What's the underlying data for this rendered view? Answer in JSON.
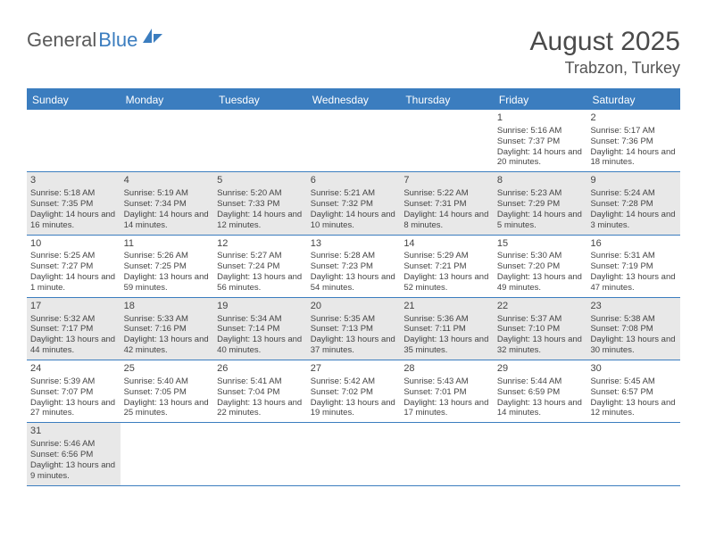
{
  "logo": {
    "text1": "General",
    "text2": "Blue"
  },
  "title": "August 2025",
  "location": "Trabzon, Turkey",
  "colors": {
    "header_bg": "#3b7dbf",
    "border": "#3b7dbf",
    "shaded_bg": "#e8e8e8",
    "page_bg": "#ffffff",
    "text": "#333333"
  },
  "days_of_week": [
    "Sunday",
    "Monday",
    "Tuesday",
    "Wednesday",
    "Thursday",
    "Friday",
    "Saturday"
  ],
  "weeks": [
    [
      {
        "empty": true
      },
      {
        "empty": true
      },
      {
        "empty": true
      },
      {
        "empty": true
      },
      {
        "empty": true
      },
      {
        "num": "1",
        "sunrise": "5:16 AM",
        "sunset": "7:37 PM",
        "daylight": "14 hours and 20 minutes."
      },
      {
        "num": "2",
        "sunrise": "5:17 AM",
        "sunset": "7:36 PM",
        "daylight": "14 hours and 18 minutes."
      }
    ],
    [
      {
        "num": "3",
        "sunrise": "5:18 AM",
        "sunset": "7:35 PM",
        "daylight": "14 hours and 16 minutes.",
        "shaded": true
      },
      {
        "num": "4",
        "sunrise": "5:19 AM",
        "sunset": "7:34 PM",
        "daylight": "14 hours and 14 minutes.",
        "shaded": true
      },
      {
        "num": "5",
        "sunrise": "5:20 AM",
        "sunset": "7:33 PM",
        "daylight": "14 hours and 12 minutes.",
        "shaded": true
      },
      {
        "num": "6",
        "sunrise": "5:21 AM",
        "sunset": "7:32 PM",
        "daylight": "14 hours and 10 minutes.",
        "shaded": true
      },
      {
        "num": "7",
        "sunrise": "5:22 AM",
        "sunset": "7:31 PM",
        "daylight": "14 hours and 8 minutes.",
        "shaded": true
      },
      {
        "num": "8",
        "sunrise": "5:23 AM",
        "sunset": "7:29 PM",
        "daylight": "14 hours and 5 minutes.",
        "shaded": true
      },
      {
        "num": "9",
        "sunrise": "5:24 AM",
        "sunset": "7:28 PM",
        "daylight": "14 hours and 3 minutes.",
        "shaded": true
      }
    ],
    [
      {
        "num": "10",
        "sunrise": "5:25 AM",
        "sunset": "7:27 PM",
        "daylight": "14 hours and 1 minute."
      },
      {
        "num": "11",
        "sunrise": "5:26 AM",
        "sunset": "7:25 PM",
        "daylight": "13 hours and 59 minutes."
      },
      {
        "num": "12",
        "sunrise": "5:27 AM",
        "sunset": "7:24 PM",
        "daylight": "13 hours and 56 minutes."
      },
      {
        "num": "13",
        "sunrise": "5:28 AM",
        "sunset": "7:23 PM",
        "daylight": "13 hours and 54 minutes."
      },
      {
        "num": "14",
        "sunrise": "5:29 AM",
        "sunset": "7:21 PM",
        "daylight": "13 hours and 52 minutes."
      },
      {
        "num": "15",
        "sunrise": "5:30 AM",
        "sunset": "7:20 PM",
        "daylight": "13 hours and 49 minutes."
      },
      {
        "num": "16",
        "sunrise": "5:31 AM",
        "sunset": "7:19 PM",
        "daylight": "13 hours and 47 minutes."
      }
    ],
    [
      {
        "num": "17",
        "sunrise": "5:32 AM",
        "sunset": "7:17 PM",
        "daylight": "13 hours and 44 minutes.",
        "shaded": true
      },
      {
        "num": "18",
        "sunrise": "5:33 AM",
        "sunset": "7:16 PM",
        "daylight": "13 hours and 42 minutes.",
        "shaded": true
      },
      {
        "num": "19",
        "sunrise": "5:34 AM",
        "sunset": "7:14 PM",
        "daylight": "13 hours and 40 minutes.",
        "shaded": true
      },
      {
        "num": "20",
        "sunrise": "5:35 AM",
        "sunset": "7:13 PM",
        "daylight": "13 hours and 37 minutes.",
        "shaded": true
      },
      {
        "num": "21",
        "sunrise": "5:36 AM",
        "sunset": "7:11 PM",
        "daylight": "13 hours and 35 minutes.",
        "shaded": true
      },
      {
        "num": "22",
        "sunrise": "5:37 AM",
        "sunset": "7:10 PM",
        "daylight": "13 hours and 32 minutes.",
        "shaded": true
      },
      {
        "num": "23",
        "sunrise": "5:38 AM",
        "sunset": "7:08 PM",
        "daylight": "13 hours and 30 minutes.",
        "shaded": true
      }
    ],
    [
      {
        "num": "24",
        "sunrise": "5:39 AM",
        "sunset": "7:07 PM",
        "daylight": "13 hours and 27 minutes."
      },
      {
        "num": "25",
        "sunrise": "5:40 AM",
        "sunset": "7:05 PM",
        "daylight": "13 hours and 25 minutes."
      },
      {
        "num": "26",
        "sunrise": "5:41 AM",
        "sunset": "7:04 PM",
        "daylight": "13 hours and 22 minutes."
      },
      {
        "num": "27",
        "sunrise": "5:42 AM",
        "sunset": "7:02 PM",
        "daylight": "13 hours and 19 minutes."
      },
      {
        "num": "28",
        "sunrise": "5:43 AM",
        "sunset": "7:01 PM",
        "daylight": "13 hours and 17 minutes."
      },
      {
        "num": "29",
        "sunrise": "5:44 AM",
        "sunset": "6:59 PM",
        "daylight": "13 hours and 14 minutes."
      },
      {
        "num": "30",
        "sunrise": "5:45 AM",
        "sunset": "6:57 PM",
        "daylight": "13 hours and 12 minutes."
      }
    ],
    [
      {
        "num": "31",
        "sunrise": "5:46 AM",
        "sunset": "6:56 PM",
        "daylight": "13 hours and 9 minutes.",
        "shaded": true
      },
      {
        "empty": true
      },
      {
        "empty": true
      },
      {
        "empty": true
      },
      {
        "empty": true
      },
      {
        "empty": true
      },
      {
        "empty": true
      }
    ]
  ],
  "labels": {
    "sunrise": "Sunrise: ",
    "sunset": "Sunset: ",
    "daylight": "Daylight: "
  }
}
